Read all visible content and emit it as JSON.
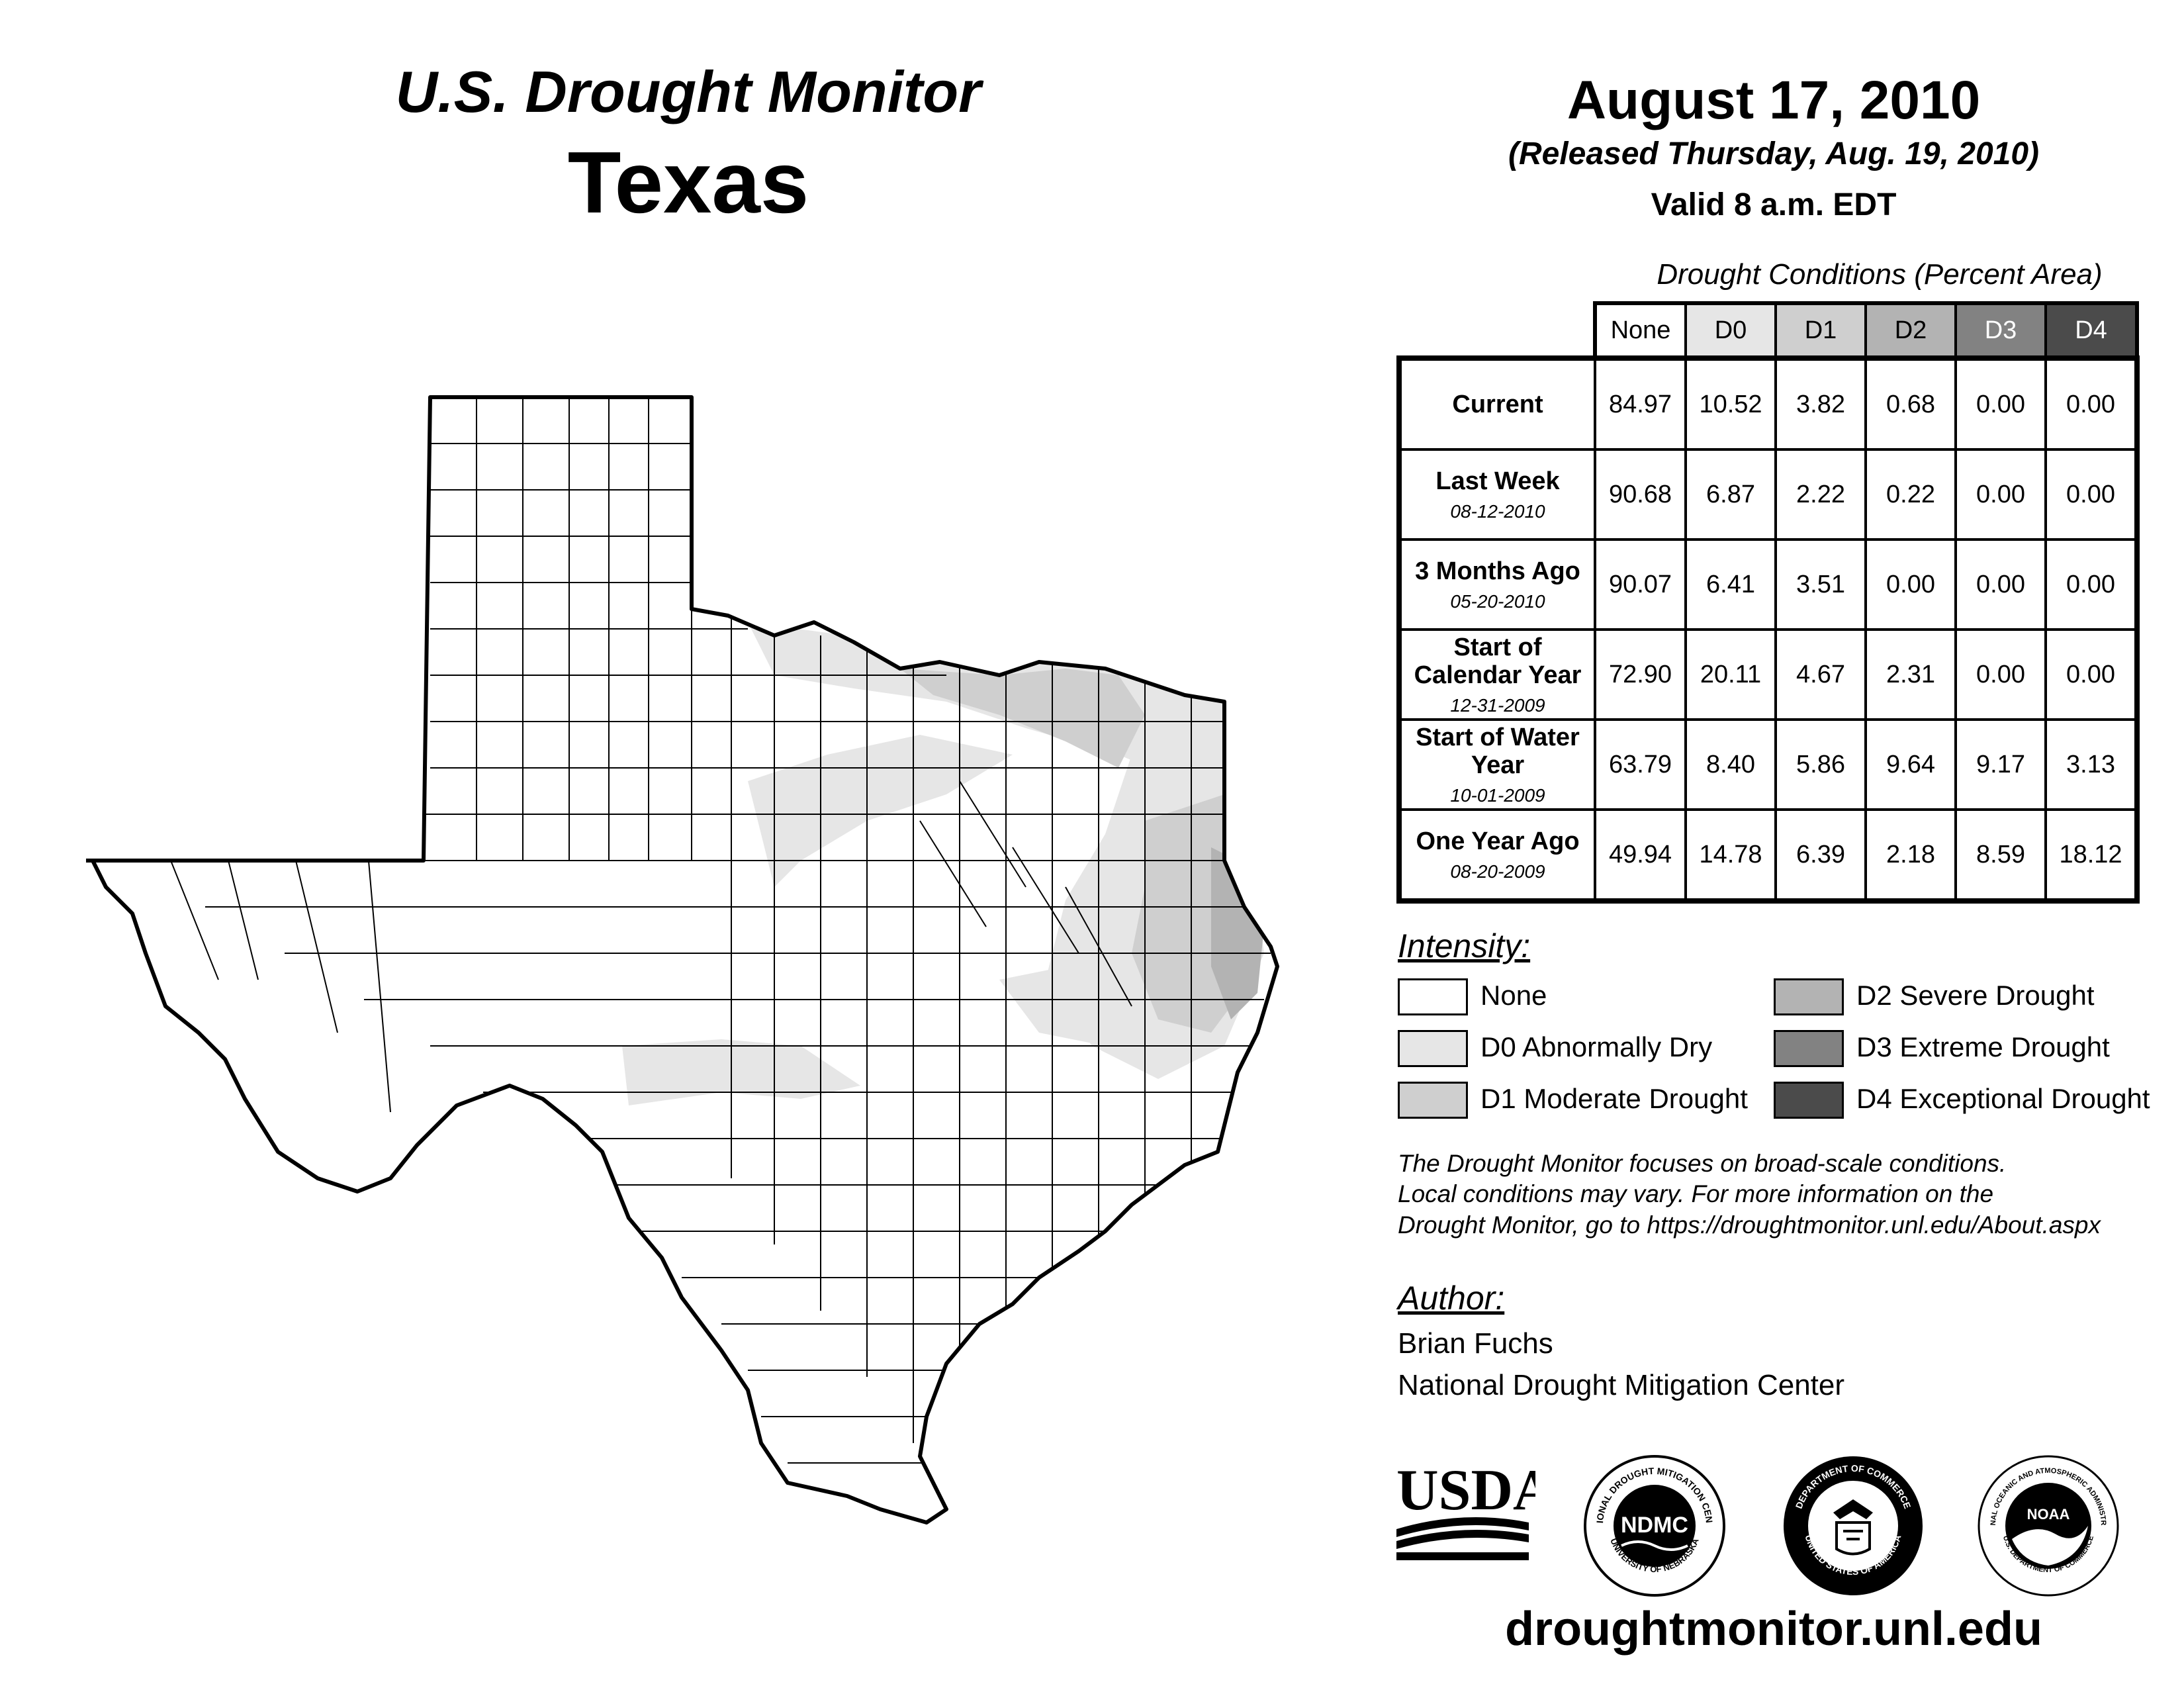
{
  "header": {
    "title": "U.S. Drought Monitor",
    "state": "Texas",
    "date": "August 17, 2010",
    "released": "(Released Thursday, Aug. 19, 2010)",
    "valid": "Valid 8 a.m. EDT"
  },
  "table": {
    "caption": "Drought Conditions (Percent Area)",
    "columns": [
      "None",
      "D0",
      "D1",
      "D2",
      "D3",
      "D4"
    ],
    "rows": [
      {
        "label": "Current",
        "date": "",
        "values": [
          "84.97",
          "10.52",
          "3.82",
          "0.68",
          "0.00",
          "0.00"
        ]
      },
      {
        "label": "Last Week",
        "date": "08-12-2010",
        "values": [
          "90.68",
          "6.87",
          "2.22",
          "0.22",
          "0.00",
          "0.00"
        ]
      },
      {
        "label": "3 Months Ago",
        "date": "05-20-2010",
        "values": [
          "90.07",
          "6.41",
          "3.51",
          "0.00",
          "0.00",
          "0.00"
        ]
      },
      {
        "label": "Start of Calendar Year",
        "date": "12-31-2009",
        "values": [
          "72.90",
          "20.11",
          "4.67",
          "2.31",
          "0.00",
          "0.00"
        ]
      },
      {
        "label": "Start of Water Year",
        "date": "10-01-2009",
        "values": [
          "63.79",
          "8.40",
          "5.86",
          "9.64",
          "9.17",
          "3.13"
        ]
      },
      {
        "label": "One Year Ago",
        "date": "08-20-2009",
        "values": [
          "49.94",
          "14.78",
          "6.39",
          "2.18",
          "8.59",
          "18.12"
        ]
      }
    ]
  },
  "legend": {
    "title": "Intensity:",
    "items": [
      {
        "label": "None",
        "color": "#ffffff"
      },
      {
        "label": "D0 Abnormally Dry",
        "color": "#e6e6e6"
      },
      {
        "label": "D1 Moderate Drought",
        "color": "#cfcfcf"
      },
      {
        "label": "D2 Severe Drought",
        "color": "#b3b3b3"
      },
      {
        "label": "D3 Extreme Drought",
        "color": "#828282"
      },
      {
        "label": "D4 Exceptional Drought",
        "color": "#4b4b4b"
      }
    ]
  },
  "disclaimer": {
    "line1": "The Drought Monitor focuses on broad-scale conditions.",
    "line2": "Local conditions may vary. For more information on the",
    "line3": "Drought Monitor, go to https://droughtmonitor.unl.edu/About.aspx"
  },
  "author": {
    "title": "Author:",
    "name": "Brian Fuchs",
    "org": "National Drought Mitigation Center"
  },
  "logos": {
    "usda": "USDA",
    "ndmc": "NDMC",
    "ndmc_ring_top": "NATIONAL DROUGHT MITIGATION CENTER",
    "ndmc_ring_bottom": "UNIVERSITY OF NEBRASKA",
    "doc_ring_top": "DEPARTMENT OF COMMERCE",
    "doc_ring_bottom": "UNITED STATES OF AMERICA",
    "noaa": "NOAA",
    "noaa_ring_top": "NATIONAL OCEANIC AND ATMOSPHERIC ADMINISTRATION",
    "noaa_ring_bottom": "U.S. DEPARTMENT OF COMMERCE"
  },
  "footer": {
    "website": "droughtmonitor.unl.edu"
  }
}
